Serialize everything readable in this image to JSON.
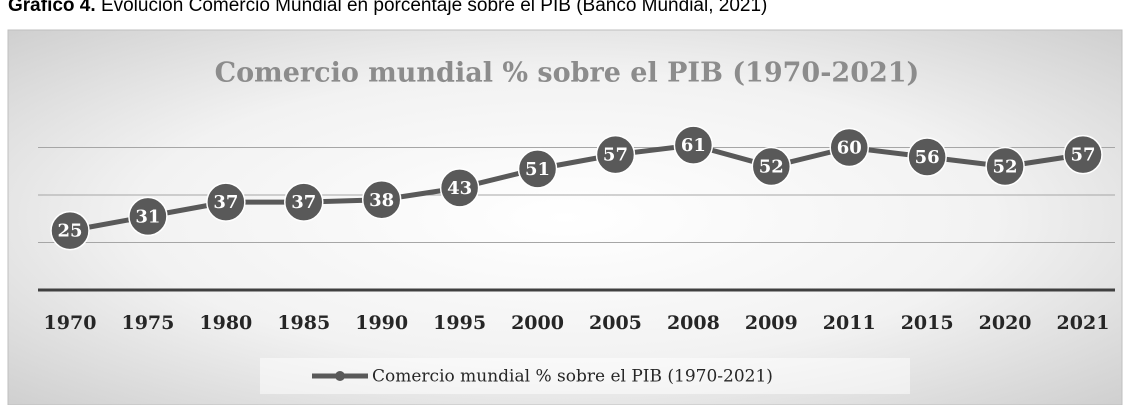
{
  "caption": {
    "label": "Gráfico 4.",
    "text": "Evolución Comercio Mundial en porcentaje sobre el PIB (Banco Mundial, 2021)"
  },
  "chart_data": {
    "type": "line",
    "title": "Comercio mundial % sobre el PIB (1970-2021)",
    "categories": [
      "1970",
      "1975",
      "1980",
      "1985",
      "1990",
      "1995",
      "2000",
      "2005",
      "2008",
      "2009",
      "2011",
      "2015",
      "2020",
      "2021"
    ],
    "series": [
      {
        "name": "Comercio mundial % sobre el PIB (1970-2021)",
        "color": "#595959",
        "values": [
          25,
          31,
          37,
          37,
          38,
          43,
          51,
          57,
          61,
          52,
          60,
          56,
          52,
          57
        ]
      }
    ],
    "ylim": [
      0,
      80
    ],
    "yticks": [
      20,
      40,
      60
    ],
    "grid": true,
    "legend": "bottom"
  }
}
